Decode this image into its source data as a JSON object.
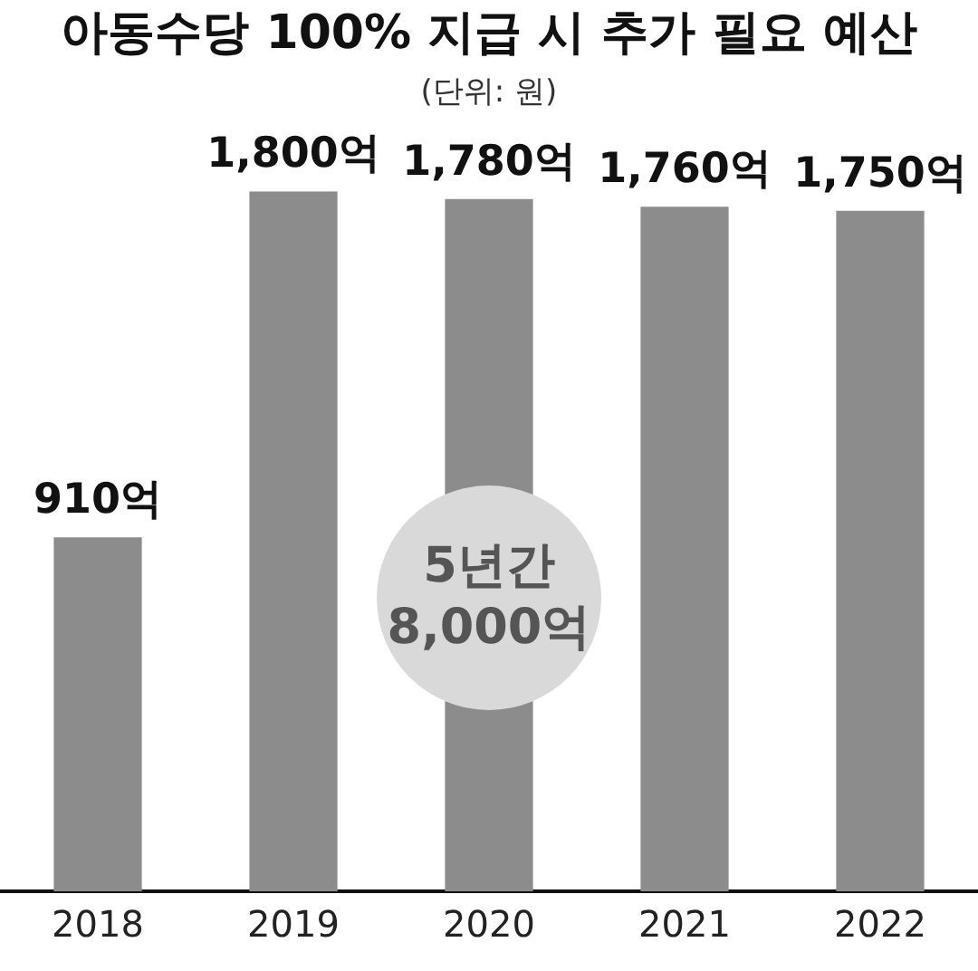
{
  "chart_data": {
    "type": "bar",
    "title": "아동수당 100% 지급 시 추가 필요 예산",
    "subtitle": "(단위: 원)",
    "categories": [
      "2018",
      "2019",
      "2020",
      "2021",
      "2022"
    ],
    "values": [
      910,
      1800,
      1780,
      1760,
      1750
    ],
    "value_labels": [
      "910억",
      "1,800억",
      "1,780억",
      "1,760억",
      "1,750억"
    ],
    "color": "#8c8c8c",
    "ylim": [
      0,
      1800
    ],
    "tick_labels": "x",
    "grid": false,
    "legend": false,
    "annotations": [
      "5년간\n8,000억"
    ]
  }
}
